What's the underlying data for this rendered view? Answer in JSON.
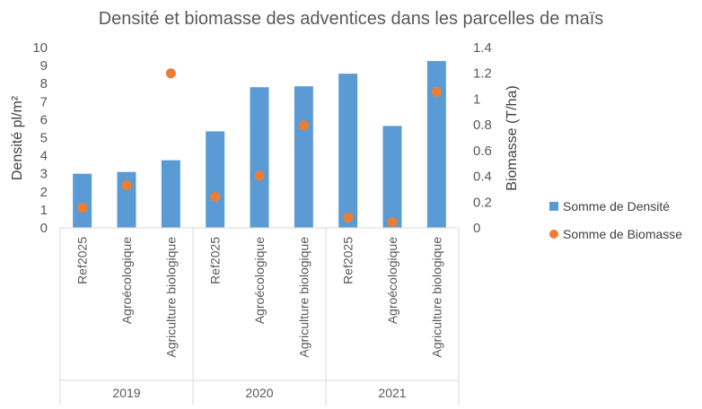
{
  "chart_data": {
    "type": "bar",
    "title": "Densité et biomasse des adventices dans les parcelles de maïs",
    "groups": [
      {
        "label": "2019",
        "categories": [
          "Ref2025",
          "Agroécologique",
          "Agriculture biologique"
        ]
      },
      {
        "label": "2020",
        "categories": [
          "Ref2025",
          "Agroécologique",
          "Agriculture biologique"
        ]
      },
      {
        "label": "2021",
        "categories": [
          "Ref2025",
          "Agroécologique",
          "Agriculture biologique"
        ]
      }
    ],
    "series": [
      {
        "name": "Somme de Densité",
        "type": "bar",
        "axis": "left",
        "color": "#5B9BD5",
        "values": [
          3.0,
          3.1,
          3.75,
          5.35,
          7.8,
          7.85,
          8.55,
          5.65,
          9.25
        ]
      },
      {
        "name": "Somme de Biomasse",
        "type": "scatter",
        "axis": "right",
        "color": "#ED7D31",
        "values": [
          0.155,
          0.33,
          1.2,
          0.24,
          0.405,
          0.795,
          0.08,
          0.045,
          1.055
        ]
      }
    ],
    "y_left": {
      "label": "Densité pl/m²",
      "min": 0,
      "max": 10,
      "ticks": [
        "0",
        "1",
        "2",
        "3",
        "4",
        "5",
        "6",
        "7",
        "8",
        "9",
        "10"
      ]
    },
    "y_right": {
      "label": "Biomasse (T/ha)",
      "min": 0,
      "max": 1.4,
      "ticks": [
        "0",
        "0.2",
        "0.4",
        "0.6",
        "0.8",
        "1",
        "1.2",
        "1.4"
      ]
    },
    "legend_position": "right",
    "grid": false
  }
}
